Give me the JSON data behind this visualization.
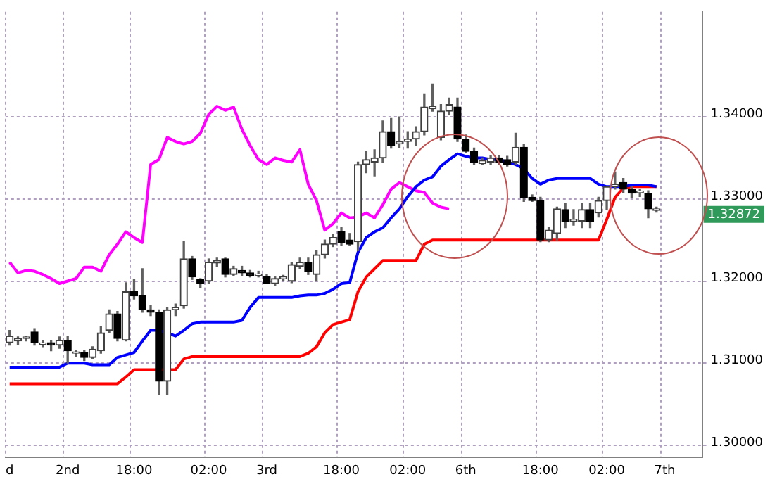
{
  "chart_data": {
    "type": "candlestick",
    "categories": [
      "d",
      null,
      null,
      null,
      null,
      null,
      null,
      "2nd",
      null,
      null,
      null,
      null,
      null,
      null,
      null,
      "18:00",
      null,
      null,
      null,
      null,
      null,
      null,
      null,
      null,
      "02:00",
      null,
      null,
      null,
      null,
      null,
      null,
      "3rd",
      null,
      null,
      null,
      null,
      null,
      null,
      null,
      null,
      "18:00",
      null,
      null,
      null,
      null,
      null,
      null,
      null,
      "02:00",
      null,
      null,
      null,
      null,
      null,
      null,
      "6th",
      null,
      null,
      null,
      null,
      null,
      null,
      null,
      null,
      "18:00",
      null,
      null,
      null,
      null,
      null,
      null,
      null,
      "02:00",
      null,
      null,
      null,
      null,
      null,
      null,
      "7th",
      null,
      null,
      null,
      null
    ],
    "ohlc": [
      [
        1.3125,
        1.314,
        1.3122,
        1.3133
      ],
      [
        1.3127,
        1.3132,
        1.3123,
        1.313
      ],
      [
        1.313,
        1.3133,
        1.3127,
        1.3132
      ],
      [
        1.3138,
        1.3142,
        1.3122,
        1.3125
      ],
      [
        1.3123,
        1.3127,
        1.312,
        1.3123
      ],
      [
        1.3125,
        1.3128,
        1.3115,
        1.3122
      ],
      [
        1.3122,
        1.3132,
        1.3118,
        1.3128
      ],
      [
        1.3127,
        1.3133,
        1.31,
        1.3115
      ],
      [
        1.3112,
        1.3115,
        1.3108,
        1.3113
      ],
      [
        1.3113,
        1.3115,
        1.3103,
        1.3107
      ],
      [
        1.3107,
        1.312,
        1.3105,
        1.3117
      ],
      [
        1.3115,
        1.3145,
        1.3112,
        1.3137
      ],
      [
        1.314,
        1.3165,
        1.3137,
        1.316
      ],
      [
        1.316,
        1.3163,
        1.3127,
        1.313
      ],
      [
        1.3128,
        1.3198,
        1.3127,
        1.3187
      ],
      [
        1.3187,
        1.3202,
        1.3178,
        1.3182
      ],
      [
        1.3182,
        1.3215,
        1.3162,
        1.3165
      ],
      [
        1.3165,
        1.317,
        1.3158,
        1.3162
      ],
      [
        1.3162,
        1.3165,
        1.3062,
        1.3078
      ],
      [
        1.3078,
        1.3168,
        1.3062,
        1.3165
      ],
      [
        1.3165,
        1.3172,
        1.3158,
        1.3168
      ],
      [
        1.317,
        1.3248,
        1.3167,
        1.3227
      ],
      [
        1.3227,
        1.323,
        1.3202,
        1.3205
      ],
      [
        1.3202,
        1.3203,
        1.3192,
        1.3197
      ],
      [
        1.32,
        1.3227,
        1.3197,
        1.3223
      ],
      [
        1.3222,
        1.3228,
        1.3218,
        1.3225
      ],
      [
        1.3227,
        1.3228,
        1.3205,
        1.3208
      ],
      [
        1.3208,
        1.3218,
        1.3207,
        1.3215
      ],
      [
        1.3213,
        1.3218,
        1.3207,
        1.321
      ],
      [
        1.321,
        1.3213,
        1.3205,
        1.3207
      ],
      [
        1.3207,
        1.3212,
        1.3205,
        1.3208
      ],
      [
        1.3205,
        1.3208,
        1.3197,
        1.3197
      ],
      [
        1.3197,
        1.3205,
        1.3195,
        1.3203
      ],
      [
        1.3203,
        1.3207,
        1.32,
        1.3205
      ],
      [
        1.32,
        1.3223,
        1.3198,
        1.322
      ],
      [
        1.3218,
        1.3228,
        1.3215,
        1.3223
      ],
      [
        1.3223,
        1.3228,
        1.3208,
        1.3212
      ],
      [
        1.3208,
        1.3237,
        1.32,
        1.3232
      ],
      [
        1.3232,
        1.325,
        1.3228,
        1.3245
      ],
      [
        1.3245,
        1.3257,
        1.3242,
        1.3253
      ],
      [
        1.326,
        1.3265,
        1.3243,
        1.3247
      ],
      [
        1.325,
        1.3258,
        1.3243,
        1.3245
      ],
      [
        1.3248,
        1.3345,
        1.3237,
        1.3342
      ],
      [
        1.3342,
        1.3358,
        1.3332,
        1.3348
      ],
      [
        1.3345,
        1.336,
        1.3328,
        1.335
      ],
      [
        1.335,
        1.3395,
        1.3345,
        1.3382
      ],
      [
        1.3382,
        1.3398,
        1.3362,
        1.3365
      ],
      [
        1.3367,
        1.34,
        1.3363,
        1.337
      ],
      [
        1.337,
        1.3382,
        1.3362,
        1.3373
      ],
      [
        1.3373,
        1.3388,
        1.3365,
        1.3382
      ],
      [
        1.3382,
        1.3428,
        1.3378,
        1.3412
      ],
      [
        1.341,
        1.344,
        1.3407,
        1.3413
      ],
      [
        1.3375,
        1.3415,
        1.3372,
        1.3407
      ],
      [
        1.3407,
        1.3423,
        1.3403,
        1.3415
      ],
      [
        1.3412,
        1.3423,
        1.337,
        1.3373
      ],
      [
        1.3373,
        1.3378,
        1.3357,
        1.3358
      ],
      [
        1.3358,
        1.3362,
        1.3342,
        1.3345
      ],
      [
        1.3343,
        1.335,
        1.3342,
        1.3347
      ],
      [
        1.3345,
        1.3353,
        1.3342,
        1.335
      ],
      [
        1.335,
        1.3353,
        1.3342,
        1.3345
      ],
      [
        1.3348,
        1.3352,
        1.334,
        1.3342
      ],
      [
        1.3345,
        1.338,
        1.3342,
        1.3363
      ],
      [
        1.3363,
        1.3367,
        1.3297,
        1.3302
      ],
      [
        1.3302,
        1.3305,
        1.3297,
        1.3298
      ],
      [
        1.3298,
        1.3302,
        1.3248,
        1.325
      ],
      [
        1.325,
        1.3265,
        1.3248,
        1.3262
      ],
      [
        1.3258,
        1.329,
        1.325,
        1.3288
      ],
      [
        1.3287,
        1.3295,
        1.3265,
        1.3273
      ],
      [
        1.3273,
        1.3287,
        1.3268,
        1.3275
      ],
      [
        1.3273,
        1.3295,
        1.3265,
        1.3287
      ],
      [
        1.3287,
        1.3295,
        1.3265,
        1.3273
      ],
      [
        1.3283,
        1.3302,
        1.3278,
        1.3298
      ],
      [
        1.3298,
        1.3315,
        1.3287,
        1.3315
      ],
      [
        1.3315,
        1.3333,
        1.3312,
        1.3318
      ],
      [
        1.332,
        1.3325,
        1.3308,
        1.3312
      ],
      [
        1.3312,
        1.3315,
        1.3302,
        1.3307
      ],
      [
        1.3308,
        1.3312,
        1.3303,
        1.3308
      ],
      [
        1.3307,
        1.331,
        1.3277,
        1.3288
      ],
      [
        1.3286,
        1.329,
        1.3284,
        1.3288
      ],
      null,
      null,
      null,
      null,
      null
    ],
    "series": [
      {
        "type": "line",
        "color": "#0000ff",
        "values": [
          1.3095,
          1.3095,
          1.3095,
          1.3095,
          1.3095,
          1.3095,
          1.3095,
          1.31,
          1.31,
          1.31,
          1.3098,
          1.3098,
          1.3098,
          1.3107,
          1.311,
          1.3113,
          1.3127,
          1.314,
          1.314,
          1.3137,
          1.3133,
          1.314,
          1.3148,
          1.315,
          1.315,
          1.315,
          1.315,
          1.315,
          1.3152,
          1.3168,
          1.318,
          1.318,
          1.318,
          1.318,
          1.318,
          1.3182,
          1.3183,
          1.3183,
          1.3185,
          1.319,
          1.3197,
          1.3198,
          1.3235,
          1.3253,
          1.326,
          1.3265,
          1.3277,
          1.3288,
          1.3303,
          1.3315,
          1.3323,
          1.3327,
          1.334,
          1.3348,
          1.3355,
          1.3352,
          1.335,
          1.335,
          1.3348,
          1.3348,
          1.3345,
          1.3342,
          1.3337,
          1.3325,
          1.3318,
          1.3323,
          1.3325,
          1.3325,
          1.3325,
          1.3325,
          1.3325,
          1.3318,
          1.3315,
          1.3315,
          1.3315,
          1.3317,
          1.3317,
          1.3317,
          1.3315,
          null,
          null,
          null,
          null,
          null
        ]
      },
      {
        "type": "line",
        "color": "#ff0000",
        "values": [
          1.3075,
          1.3075,
          1.3075,
          1.3075,
          1.3075,
          1.3075,
          1.3075,
          1.3075,
          1.3075,
          1.3075,
          1.3075,
          1.3075,
          1.3075,
          1.3075,
          1.3083,
          1.3092,
          1.3092,
          1.3092,
          1.3092,
          1.3092,
          1.3092,
          1.3105,
          1.3108,
          1.3108,
          1.3108,
          1.3108,
          1.3108,
          1.3108,
          1.3108,
          1.3108,
          1.3108,
          1.3108,
          1.3108,
          1.3108,
          1.3108,
          1.3108,
          1.3112,
          1.312,
          1.3137,
          1.3147,
          1.315,
          1.3153,
          1.3187,
          1.3205,
          1.3215,
          1.3225,
          1.3225,
          1.3225,
          1.3225,
          1.3225,
          1.3245,
          1.325,
          1.325,
          1.325,
          1.325,
          1.325,
          1.325,
          1.325,
          1.325,
          1.325,
          1.325,
          1.325,
          1.325,
          1.325,
          1.325,
          1.325,
          1.325,
          1.325,
          1.325,
          1.325,
          1.325,
          1.325,
          1.3275,
          1.3302,
          1.3313,
          1.3315,
          1.3315,
          1.3315,
          1.3315,
          null,
          null,
          null,
          null,
          null
        ]
      },
      {
        "type": "line",
        "color": "#ff00ff",
        "values": [
          1.3223,
          1.321,
          1.3213,
          1.3212,
          1.3208,
          1.3203,
          1.3197,
          1.32,
          1.3203,
          1.3217,
          1.3217,
          1.3212,
          1.3232,
          1.3245,
          1.326,
          1.3253,
          1.3247,
          1.3342,
          1.3348,
          1.3375,
          1.337,
          1.3367,
          1.337,
          1.338,
          1.3403,
          1.3413,
          1.3408,
          1.3412,
          1.3385,
          1.3365,
          1.3348,
          1.3342,
          1.335,
          1.3347,
          1.3345,
          1.336,
          1.3318,
          1.3298,
          1.3262,
          1.327,
          1.3283,
          1.3277,
          1.3278,
          1.3283,
          1.3277,
          1.3293,
          1.3312,
          1.332,
          1.3315,
          1.331,
          1.3308,
          1.3295,
          1.329,
          1.3288,
          null,
          null,
          null,
          null,
          null,
          null,
          null,
          null,
          null,
          null,
          null,
          null,
          null,
          null,
          null,
          null,
          null,
          null,
          null,
          null,
          null,
          null,
          null,
          null,
          null,
          null,
          null,
          null,
          null,
          null
        ]
      }
    ],
    "ylim": [
      1.2985,
      1.3528
    ],
    "yticks": [
      {
        "value": 1.3,
        "label": "1.30000"
      },
      {
        "value": 1.31,
        "label": "1.31000"
      },
      {
        "value": 1.32,
        "label": "1.32000"
      },
      {
        "value": 1.33,
        "label": "1.33000"
      },
      {
        "value": 1.34,
        "label": "1.34000"
      }
    ],
    "grid": true,
    "legend": false,
    "annotations": [
      "1.32872"
    ]
  }
}
